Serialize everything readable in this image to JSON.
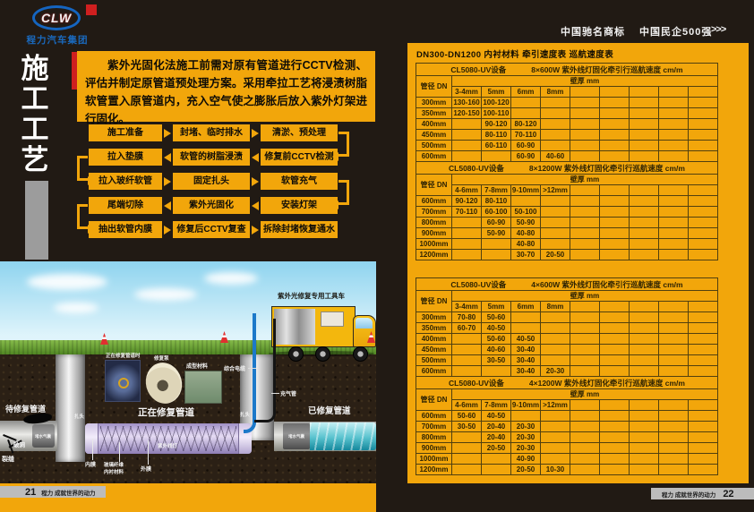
{
  "brand": {
    "logo": "CLW",
    "company": "程力汽车集团"
  },
  "top_right": {
    "badge1": "中国驰名商标",
    "badge2": "中国民企500强",
    "chevrons": ">>>"
  },
  "left_page": {
    "vertical_title": [
      "施",
      "工",
      "工",
      "艺"
    ],
    "intro": "紫外光固化法施工前需对原有管道进行CCTV检测、评估并制定原管道预处理方案。采用牵拉工艺将浸渍树脂软管置入原管道内，充入空气使之膨胀后放入紫外灯架进行固化。",
    "flow_rows": [
      {
        "dir": "right",
        "boxes": [
          "施工准备",
          "封堵、临时排水",
          "清淤、预处理"
        ]
      },
      {
        "dir": "left",
        "boxes": [
          "拉入垫膜",
          "软管的树脂浸渍",
          "修复前CCTV检测"
        ]
      },
      {
        "dir": "right",
        "boxes": [
          "拉入玻纤软管",
          "固定扎头",
          "软管充气"
        ]
      },
      {
        "dir": "left",
        "boxes": [
          "尾端切除",
          "紫外光固化",
          "安装灯架"
        ]
      },
      {
        "dir": "right",
        "boxes": [
          "抽出软管内膜",
          "修复后CCTV复查",
          "拆除封堵恢复通水"
        ]
      }
    ],
    "illustration": {
      "truck_label": "紫外光修复专用工具车",
      "photo_label": "正在修复管道时",
      "cone_label": "修复泵",
      "material_label": "成型材料",
      "cable_label": "综合电缆",
      "air_pipe_label": "充气管",
      "pending_pipe": "待修复管道",
      "hole": "破洞",
      "crack": "裂缝",
      "plug_left": "堵水气囊",
      "plug_right": "堵水气囊",
      "tie_head_left": "扎头",
      "tie_head_right": "扎头",
      "repairing_pipe": "正在修复管道",
      "inner_film": "内膜",
      "liner_line1": "玻璃纤维",
      "liner_line2": "内衬材料",
      "outer_film": "外膜",
      "uv_lamp": "紫外线灯",
      "repaired_pipe": "已修复管道"
    },
    "footer": {
      "page": "21",
      "slogan": "程力 成就世界的动力"
    }
  },
  "right_page": {
    "title": "DN300-DN1200 内衬材料 牵引速度表 巡航速度表",
    "dn_header": "管径 DN",
    "wall_header": "壁厚 mm",
    "footer": {
      "page": "22",
      "slogan": "程力 成就世界的动力"
    }
  },
  "tables": [
    {
      "sections": [
        {
          "device": "CL5080-UV设备",
          "spec": "8×600W 紫外线灯固化牵引行巡航速度 cm/m",
          "thickness": [
            "3-4mm",
            "5mm",
            "6mm",
            "8mm",
            "",
            "",
            "",
            "",
            ""
          ],
          "rows": [
            [
              "300mm",
              "130-160",
              "100-120",
              "",
              "",
              "",
              "",
              "",
              "",
              ""
            ],
            [
              "350mm",
              "120-150",
              "100-110",
              "",
              "",
              "",
              "",
              "",
              "",
              ""
            ],
            [
              "400mm",
              "",
              "90-120",
              "80-120",
              "",
              "",
              "",
              "",
              "",
              ""
            ],
            [
              "450mm",
              "",
              "80-110",
              "70-110",
              "",
              "",
              "",
              "",
              "",
              ""
            ],
            [
              "500mm",
              "",
              "60-110",
              "60-90",
              "",
              "",
              "",
              "",
              "",
              ""
            ],
            [
              "600mm",
              "",
              "",
              "60-90",
              "40-60",
              "",
              "",
              "",
              "",
              ""
            ]
          ]
        },
        {
          "device": "CL5080-UV设备",
          "spec": "8×1200W 紫外线灯固化牵引行巡航速度 cm/m",
          "thickness": [
            "4-6mm",
            "7-8mm",
            "9-10mm",
            ">12mm",
            "",
            "",
            "",
            "",
            ""
          ],
          "rows": [
            [
              "600mm",
              "90-120",
              "80-110",
              "",
              "",
              "",
              "",
              "",
              "",
              ""
            ],
            [
              "700mm",
              "70-110",
              "60-100",
              "50-100",
              "",
              "",
              "",
              "",
              "",
              ""
            ],
            [
              "800mm",
              "",
              "60-90",
              "50-90",
              "",
              "",
              "",
              "",
              "",
              ""
            ],
            [
              "900mm",
              "",
              "50-90",
              "40-80",
              "",
              "",
              "",
              "",
              "",
              ""
            ],
            [
              "1000mm",
              "",
              "",
              "40-80",
              "",
              "",
              "",
              "",
              "",
              ""
            ],
            [
              "1200mm",
              "",
              "",
              "30-70",
              "20-50",
              "",
              "",
              "",
              "",
              ""
            ]
          ]
        }
      ]
    },
    {
      "sections": [
        {
          "device": "CL5080-UV设备",
          "spec": "4×600W 紫外线灯固化牵引行巡航速度 cm/m",
          "thickness": [
            "3-4mm",
            "5mm",
            "6mm",
            "8mm",
            "",
            "",
            "",
            "",
            ""
          ],
          "rows": [
            [
              "300mm",
              "70-80",
              "50-60",
              "",
              "",
              "",
              "",
              "",
              "",
              ""
            ],
            [
              "350mm",
              "60-70",
              "40-50",
              "",
              "",
              "",
              "",
              "",
              "",
              ""
            ],
            [
              "400mm",
              "",
              "50-60",
              "40-50",
              "",
              "",
              "",
              "",
              "",
              ""
            ],
            [
              "450mm",
              "",
              "40-60",
              "30-40",
              "",
              "",
              "",
              "",
              "",
              ""
            ],
            [
              "500mm",
              "",
              "30-50",
              "30-40",
              "",
              "",
              "",
              "",
              "",
              ""
            ],
            [
              "600mm",
              "",
              "",
              "30-40",
              "20-30",
              "",
              "",
              "",
              "",
              ""
            ]
          ]
        },
        {
          "device": "CL5080-UV设备",
          "spec": "4×1200W 紫外线灯固化牵引行巡航速度 cm/m",
          "thickness": [
            "4-6mm",
            "7-8mm",
            "9-10mm",
            ">12mm",
            "",
            "",
            "",
            "",
            ""
          ],
          "rows": [
            [
              "600mm",
              "50-60",
              "40-50",
              "",
              "",
              "",
              "",
              "",
              "",
              ""
            ],
            [
              "700mm",
              "30-50",
              "20-40",
              "20-30",
              "",
              "",
              "",
              "",
              "",
              ""
            ],
            [
              "800mm",
              "",
              "20-40",
              "20-30",
              "",
              "",
              "",
              "",
              "",
              ""
            ],
            [
              "900mm",
              "",
              "20-50",
              "20-30",
              "",
              "",
              "",
              "",
              "",
              ""
            ],
            [
              "1000mm",
              "",
              "",
              "40-90",
              "",
              "",
              "",
              "",
              "",
              ""
            ],
            [
              "1200mm",
              "",
              "",
              "20-50",
              "10-30",
              "",
              "",
              "",
              "",
              ""
            ]
          ]
        }
      ]
    }
  ],
  "colors": {
    "yellow": "#F2A60B",
    "background": "#211A14",
    "red": "#CF1F1F",
    "logo_blue": "#1565C0"
  }
}
